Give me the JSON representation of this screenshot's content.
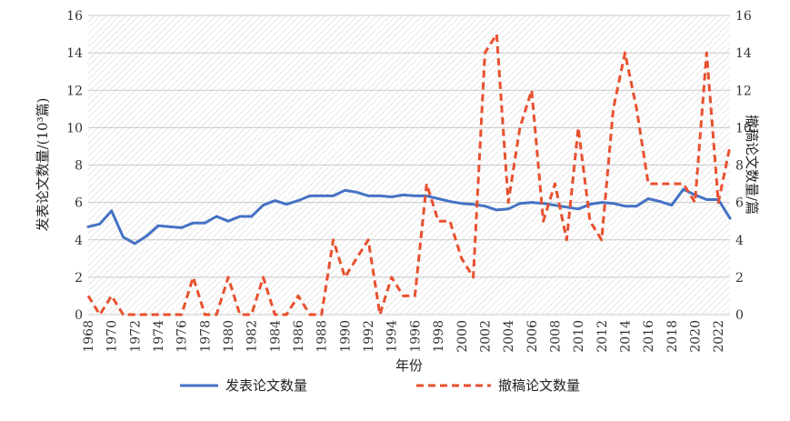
{
  "chart_data": {
    "type": "line",
    "title": "",
    "xlabel": "年份",
    "ylabel_left": "发表论文数量/(10³篇)",
    "ylabel_right": "撤稿论文数量/篇",
    "ylim_left": [
      0,
      16
    ],
    "ylim_right": [
      0,
      16
    ],
    "yticks_left": [
      "0",
      "2",
      "4",
      "6",
      "8",
      "10",
      "12",
      "14",
      "16"
    ],
    "yticks_right": [
      "0",
      "2",
      "4",
      "6",
      "8",
      "10",
      "12",
      "14",
      "16"
    ],
    "xlim": [
      1968,
      2023
    ],
    "xticks": [
      "1968",
      "1970",
      "1972",
      "1974",
      "1976",
      "1978",
      "1980",
      "1982",
      "1984",
      "1986",
      "1988",
      "1990",
      "1992",
      "1994",
      "1996",
      "1998",
      "2000",
      "2002",
      "2004",
      "2006",
      "2008",
      "2010",
      "2012",
      "2014",
      "2016",
      "2018",
      "2020",
      "2022"
    ],
    "grid": true,
    "legend_position": "bottom",
    "series": [
      {
        "name": "发表论文数量",
        "axis": "left",
        "color": "#4472c4",
        "style": "solid",
        "x": [
          1968,
          1969,
          1970,
          1971,
          1972,
          1973,
          1974,
          1975,
          1976,
          1977,
          1978,
          1979,
          1980,
          1981,
          1982,
          1983,
          1984,
          1985,
          1986,
          1987,
          1988,
          1989,
          1990,
          1991,
          1992,
          1993,
          1994,
          1995,
          1996,
          1997,
          1998,
          1999,
          2000,
          2001,
          2002,
          2003,
          2004,
          2005,
          2006,
          2007,
          2008,
          2009,
          2010,
          2011,
          2012,
          2013,
          2014,
          2015,
          2016,
          2017,
          2018,
          2019,
          2020,
          2021,
          2022,
          2023
        ],
        "values": [
          4.7,
          4.85,
          5.55,
          4.15,
          3.8,
          4.2,
          4.75,
          4.7,
          4.65,
          4.9,
          4.9,
          5.25,
          5.0,
          5.25,
          5.25,
          5.85,
          6.1,
          5.9,
          6.1,
          6.35,
          6.35,
          6.35,
          6.65,
          6.55,
          6.35,
          6.35,
          6.3,
          6.4,
          6.35,
          6.35,
          6.2,
          6.05,
          5.95,
          5.9,
          5.8,
          5.6,
          5.65,
          5.95,
          6.0,
          5.95,
          5.85,
          5.75,
          5.65,
          5.9,
          6.0,
          5.95,
          5.8,
          5.8,
          6.2,
          6.05,
          5.85,
          6.7,
          6.4,
          6.15,
          6.15,
          5.15
        ]
      },
      {
        "name": "撤稿论文数量",
        "axis": "right",
        "color": "#e8502f",
        "style": "dashed",
        "x": [
          1968,
          1969,
          1970,
          1971,
          1972,
          1973,
          1974,
          1975,
          1976,
          1977,
          1978,
          1979,
          1980,
          1981,
          1982,
          1983,
          1984,
          1985,
          1986,
          1987,
          1988,
          1989,
          1990,
          1991,
          1992,
          1993,
          1994,
          1995,
          1996,
          1997,
          1998,
          1999,
          2000,
          2001,
          2002,
          2003,
          2004,
          2005,
          2006,
          2007,
          2008,
          2009,
          2010,
          2011,
          2012,
          2013,
          2014,
          2015,
          2016,
          2017,
          2018,
          2019,
          2020,
          2021,
          2022,
          2023
        ],
        "values": [
          1,
          0,
          1,
          0,
          0,
          0,
          0,
          0,
          0,
          2,
          0,
          0,
          2,
          0,
          0,
          2,
          0,
          0,
          1,
          0,
          0,
          4,
          2,
          3,
          4,
          0,
          2,
          1,
          1,
          7,
          5,
          5,
          3,
          2,
          14,
          15,
          6,
          10,
          12,
          5,
          7,
          4,
          10,
          5,
          4,
          11,
          14,
          11,
          7,
          7,
          7,
          7,
          6,
          14,
          6,
          9
        ]
      }
    ]
  },
  "colors": {
    "background": "#ffffff",
    "grid": "#c8c8c8",
    "hatch": "#d6d6d6"
  }
}
